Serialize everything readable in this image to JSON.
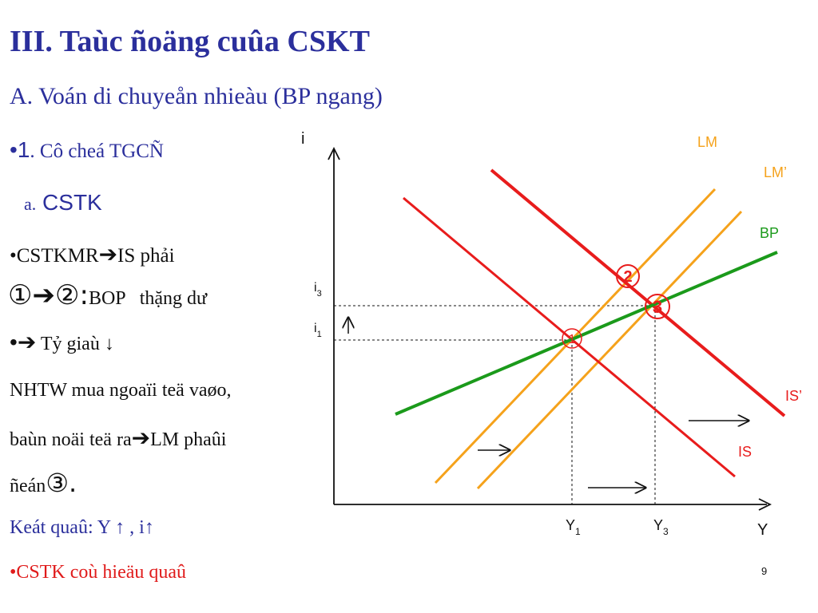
{
  "slide": {
    "title": "III. Taùc ñoäng cuûa CSKT",
    "subtitle": "A. Voán di chuyeån nhieàu (BP ngang)",
    "page_number": "9"
  },
  "bullets": {
    "b1_dot": "•",
    "b1_num": "1",
    "b1_text": ". Cô cheá TGCÑ",
    "b2_prefix": "a.",
    "b2_text": " CSTK",
    "b3_text": "•CSTKMR",
    "b3_arrow": "➔",
    "b3_rest": "IS phải",
    "b4_c1": "①",
    "b4_arrow": "➔",
    "b4_c2": "②",
    "b4_colon": ":",
    "b4_rest": "BOP   thặng dư",
    "b5_dot": "•",
    "b5_arrow": "➔",
    "b5_text": " Tỷ giaù ↓",
    "b6_text": "NHTW mua ngoaïi teä vaøo,",
    "b7_text": "baùn noäi teä ra",
    "b7_arrow": "➔",
    "b7_rest": "LM phaûi",
    "b8_text": "ñeán",
    "b8_c3": "③.",
    "b9_text": "Keát quaû: Y ↑ , i↑",
    "b10_text": "•CSTK coù hieäu quaû"
  },
  "diagram": {
    "y_axis_label": "i",
    "x_axis_label": "Y",
    "curve_labels": {
      "lm": "LM",
      "lm2": "LM’",
      "bp": "BP",
      "is": "IS",
      "is2": "IS’"
    },
    "tick_i1": "i",
    "tick_i1_sub": "1",
    "tick_i3": "i",
    "tick_i3_sub": "3",
    "tick_y1": "Y",
    "tick_y1_sub": "1",
    "tick_y3": "Y",
    "tick_y3_sub": "3",
    "eq1": "1",
    "eq2": "2",
    "eq3": "3",
    "up_arrow": "↑",
    "colors": {
      "red": "#e81c1c",
      "orange": "#f5a21b",
      "green": "#1b9a1b",
      "blue": "#2b2f9c"
    }
  }
}
